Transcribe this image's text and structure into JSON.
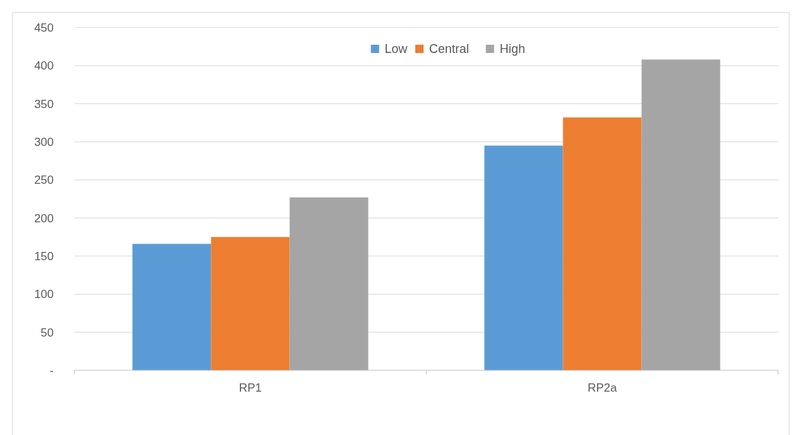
{
  "chart_data": {
    "type": "bar",
    "categories": [
      "RP1",
      "RP2a"
    ],
    "series": [
      {
        "name": "Low",
        "color": "#5b9bd5",
        "values": [
          166,
          295
        ]
      },
      {
        "name": "Central",
        "color": "#ed7d31",
        "values": [
          175,
          332
        ]
      },
      {
        "name": "High",
        "color": "#a5a5a5",
        "values": [
          227,
          408
        ]
      }
    ],
    "ylim": [
      0,
      450
    ],
    "yticks": [
      {
        "value": 0,
        "label": "-"
      },
      50,
      100,
      150,
      200,
      250,
      300,
      350,
      400,
      450
    ],
    "grid": "y",
    "legend": "top"
  }
}
